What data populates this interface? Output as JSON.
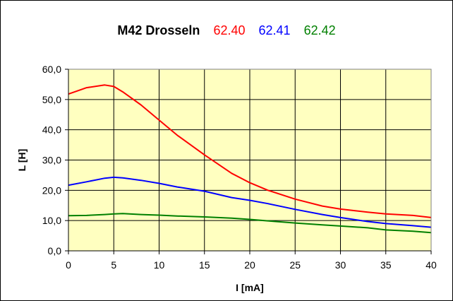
{
  "chart_data": {
    "type": "line",
    "title": "M42 Drosseln",
    "xlabel": "I [mA]",
    "ylabel": "L [H]",
    "xlim": [
      0,
      40
    ],
    "ylim": [
      0,
      60
    ],
    "x_ticks": [
      0,
      5,
      10,
      15,
      20,
      25,
      30,
      35,
      40
    ],
    "y_ticks": [
      0,
      10,
      20,
      30,
      40,
      50,
      60
    ],
    "x_tick_labels": [
      "0",
      "5",
      "10",
      "15",
      "20",
      "25",
      "30",
      "35",
      "40"
    ],
    "y_tick_labels": [
      "0,0",
      "10,0",
      "20,0",
      "30,0",
      "40,0",
      "50,0",
      "60,0"
    ],
    "grid": true,
    "legend": "in-title",
    "background_color": "#ffffc0",
    "series": [
      {
        "name": "62.40",
        "color": "#ff0000",
        "x": [
          0,
          2,
          4,
          5,
          6,
          8,
          10,
          12,
          15,
          18,
          20,
          22,
          25,
          28,
          30,
          33,
          35,
          38,
          40
        ],
        "y": [
          51.8,
          53.9,
          54.8,
          54.3,
          52.5,
          48.2,
          43.2,
          38.2,
          31.7,
          25.6,
          22.5,
          20,
          17.1,
          14.8,
          13.8,
          12.8,
          12.2,
          11.7,
          11.0
        ]
      },
      {
        "name": "62.41",
        "color": "#0000ff",
        "x": [
          0,
          2,
          4,
          5,
          6,
          8,
          10,
          12,
          15,
          18,
          20,
          22,
          25,
          28,
          30,
          33,
          35,
          38,
          40
        ],
        "y": [
          21.7,
          22.8,
          24,
          24.3,
          24.1,
          23.3,
          22.3,
          21.1,
          19.7,
          17.6,
          16.7,
          15.6,
          13.7,
          12.0,
          11.0,
          9.7,
          9.0,
          8.3,
          7.8
        ]
      },
      {
        "name": "62.42",
        "color": "#008000",
        "x": [
          0,
          2,
          4,
          5,
          6,
          8,
          10,
          12,
          15,
          18,
          20,
          22,
          25,
          28,
          30,
          33,
          35,
          38,
          40
        ],
        "y": [
          11.6,
          11.7,
          12.0,
          12.2,
          12.3,
          12.0,
          11.8,
          11.5,
          11.2,
          10.8,
          10.4,
          9.9,
          9.2,
          8.6,
          8.2,
          7.6,
          6.9,
          6.5,
          6.0
        ]
      }
    ]
  }
}
